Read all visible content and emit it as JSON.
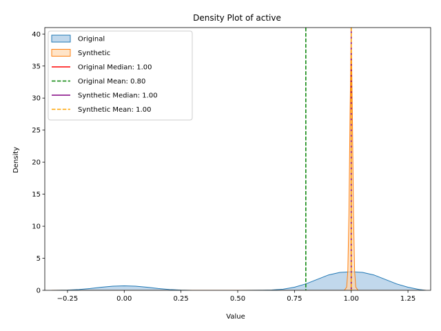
{
  "chart_data": {
    "type": "area",
    "title": "Density Plot of active",
    "xlabel": "Value",
    "ylabel": "Density",
    "xlim": [
      -0.35,
      1.35
    ],
    "ylim": [
      0,
      41
    ],
    "xticks": [
      -0.25,
      0.0,
      0.25,
      0.5,
      0.75,
      1.0,
      1.25
    ],
    "xtick_labels": [
      "−0.25",
      "0.00",
      "0.25",
      "0.50",
      "0.75",
      "1.00",
      "1.25"
    ],
    "yticks": [
      0,
      5,
      10,
      15,
      20,
      25,
      30,
      35,
      40
    ],
    "ytick_labels": [
      "0",
      "5",
      "10",
      "15",
      "20",
      "25",
      "30",
      "35",
      "40"
    ],
    "grid": false,
    "legend_position": "top-left",
    "series": [
      {
        "name": "Original",
        "kind": "area",
        "color": "#1f77b4",
        "fill": "#a6c8e4",
        "x": [
          -0.32,
          -0.25,
          -0.2,
          -0.15,
          -0.1,
          -0.05,
          0.0,
          0.05,
          0.1,
          0.15,
          0.2,
          0.25,
          0.3,
          0.4,
          0.5,
          0.6,
          0.65,
          0.7,
          0.75,
          0.8,
          0.85,
          0.9,
          0.95,
          1.0,
          1.05,
          1.1,
          1.15,
          1.2,
          1.25,
          1.3,
          1.33
        ],
        "y": [
          0.0,
          0.04,
          0.12,
          0.28,
          0.48,
          0.64,
          0.7,
          0.64,
          0.48,
          0.28,
          0.12,
          0.04,
          0.0,
          0.0,
          0.0,
          0.02,
          0.06,
          0.18,
          0.48,
          1.0,
          1.7,
          2.4,
          2.8,
          2.9,
          2.8,
          2.4,
          1.7,
          1.0,
          0.48,
          0.12,
          0.0
        ]
      },
      {
        "name": "Synthetic",
        "kind": "area",
        "color": "#ff7f0e",
        "fill": "#ffd8b0",
        "x": [
          -0.32,
          0.97,
          0.98,
          0.985,
          0.99,
          0.995,
          1.0,
          1.005,
          1.01,
          1.015,
          1.02,
          1.03,
          1.33
        ],
        "y": [
          0.0,
          0.0,
          0.5,
          3.0,
          12.0,
          28.0,
          40.5,
          28.0,
          12.0,
          3.0,
          0.5,
          0.0,
          0.0
        ]
      }
    ],
    "vlines": [
      {
        "name": "Original Median: 1.00",
        "x": 1.0,
        "color": "#ff0000",
        "style": "solid"
      },
      {
        "name": "Original Mean: 0.80",
        "x": 0.8,
        "color": "#008000",
        "style": "dashed"
      },
      {
        "name": "Synthetic Median: 1.00",
        "x": 1.0,
        "color": "#800080",
        "style": "solid"
      },
      {
        "name": "Synthetic Mean: 1.00",
        "x": 1.0,
        "color": "#ffa500",
        "style": "dashed"
      }
    ]
  }
}
